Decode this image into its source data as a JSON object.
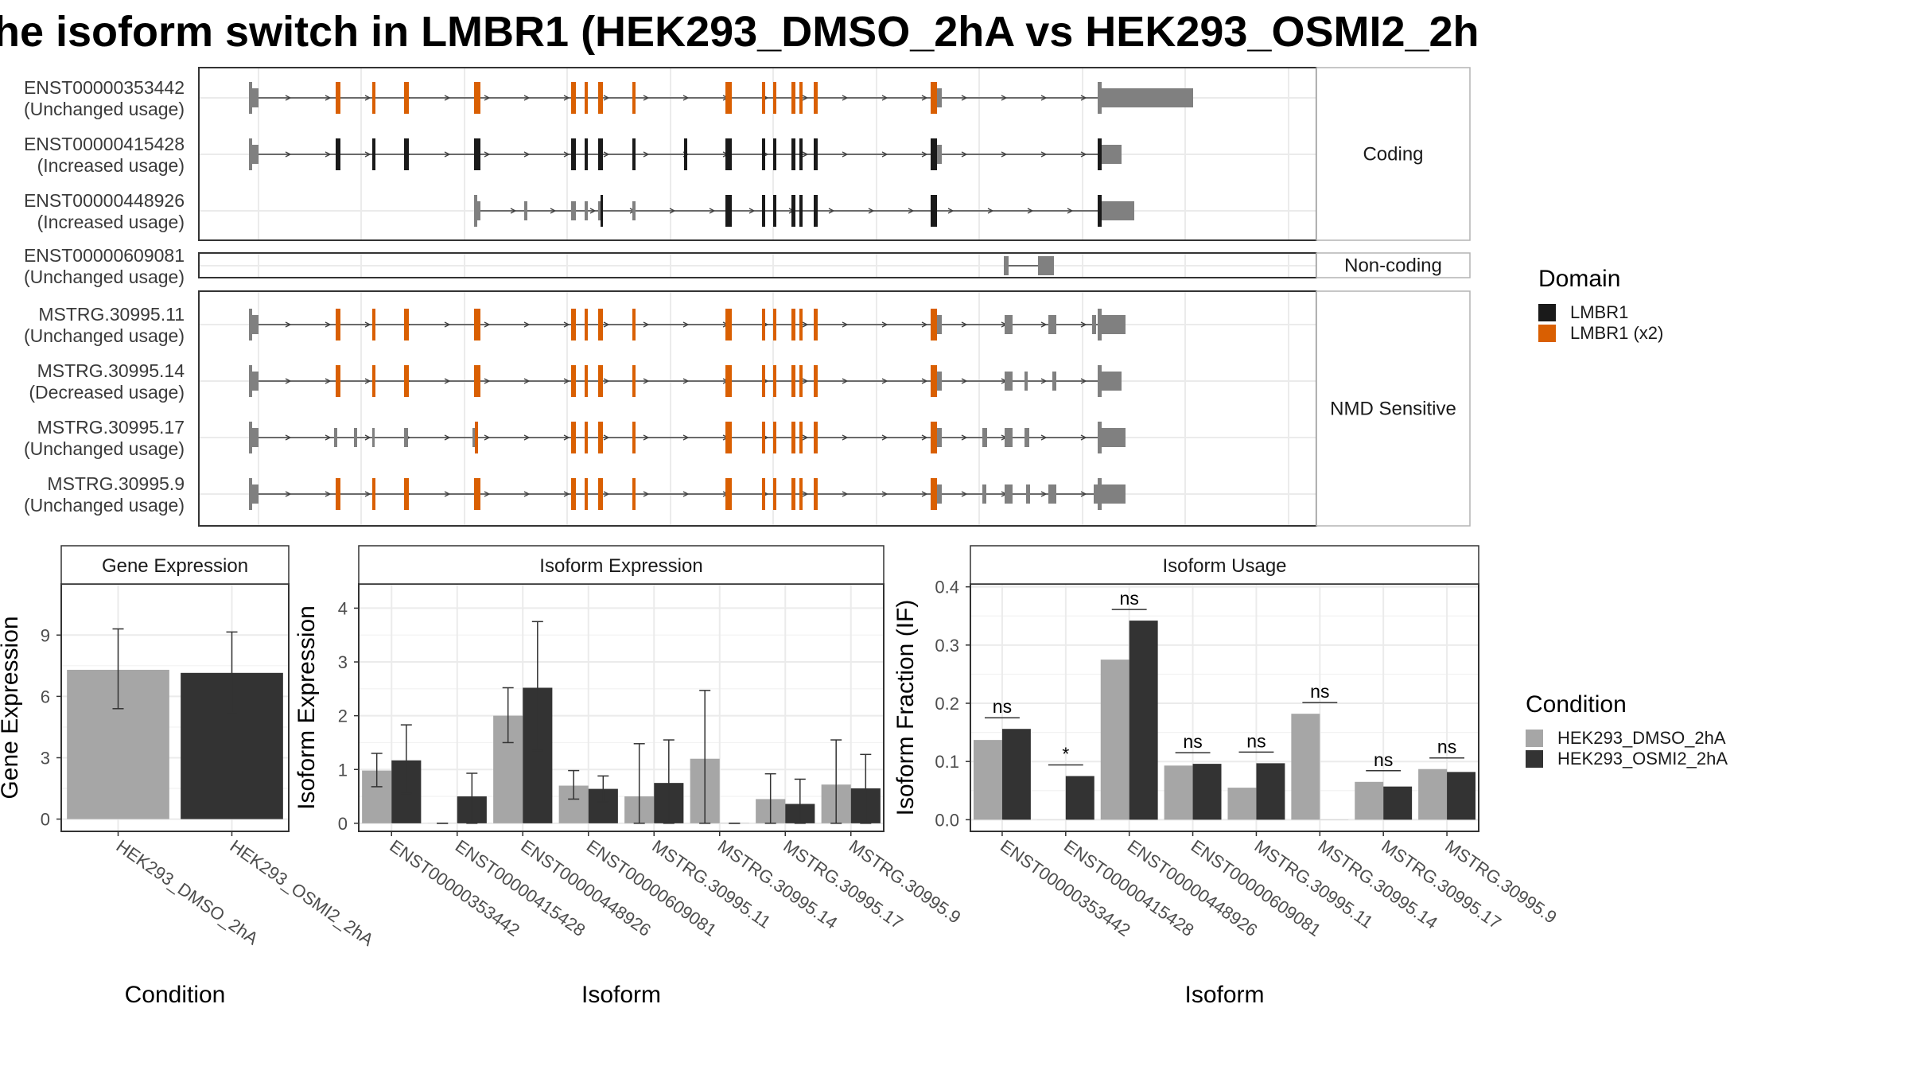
{
  "title": "he isoform switch in LMBR1 (HEK293_DMSO_2hA vs HEK293_OSMI2_2h",
  "colors": {
    "domain_black": "#1a1a1a",
    "domain_orange": "#d95f02",
    "utr_grey": "#808080",
    "dmso": "#a6a6a6",
    "osmi": "#333333",
    "grid": "#ebebeb",
    "panel_border": "#333333"
  },
  "transcripts": [
    {
      "id": "ENST00000353442",
      "usage": "(Unchanged usage)",
      "group": "coding",
      "domain": "orange",
      "start": 63,
      "end": 1133,
      "end_rect": [
        1133,
        1250
      ],
      "exons": [
        [
          63,
          75
        ],
        [
          172,
          178
        ],
        [
          218,
          222
        ],
        [
          258,
          264
        ],
        [
          346,
          354
        ],
        [
          468,
          474
        ],
        [
          485,
          489
        ],
        [
          502,
          508
        ],
        [
          545,
          549
        ],
        [
          662,
          670
        ],
        [
          708,
          712
        ],
        [
          722,
          726
        ],
        [
          745,
          750
        ],
        [
          755,
          759
        ],
        [
          773,
          778
        ],
        [
          920,
          928
        ],
        [
          928,
          934
        ]
      ],
      "coding_exons": [
        [
          172,
          178
        ],
        [
          218,
          222
        ],
        [
          258,
          264
        ],
        [
          346,
          354
        ],
        [
          468,
          474
        ],
        [
          485,
          489
        ],
        [
          502,
          508
        ],
        [
          545,
          549
        ],
        [
          662,
          670
        ],
        [
          708,
          712
        ],
        [
          722,
          726
        ],
        [
          745,
          750
        ],
        [
          755,
          759
        ],
        [
          773,
          778
        ],
        [
          920,
          928
        ]
      ]
    },
    {
      "id": "ENST00000415428",
      "usage": "(Increased usage)",
      "group": "coding",
      "domain": "black",
      "start": 63,
      "end": 1133,
      "end_rect": [
        1133,
        1160
      ],
      "exons": [
        [
          63,
          75
        ],
        [
          928,
          934
        ]
      ],
      "coding_exons": [
        [
          172,
          178
        ],
        [
          218,
          222
        ],
        [
          258,
          264
        ],
        [
          346,
          354
        ],
        [
          468,
          474
        ],
        [
          485,
          489
        ],
        [
          502,
          508
        ],
        [
          545,
          549
        ],
        [
          610,
          614
        ],
        [
          662,
          670
        ],
        [
          708,
          712
        ],
        [
          722,
          726
        ],
        [
          745,
          750
        ],
        [
          755,
          759
        ],
        [
          773,
          778
        ],
        [
          920,
          928
        ]
      ]
    },
    {
      "id": "ENST00000448926",
      "usage": "(Increased usage)",
      "group": "coding",
      "domain": "black",
      "start": 346,
      "end": 1133,
      "end_rect": [
        1133,
        1176
      ],
      "exons": [
        [
          346,
          354
        ],
        [
          409,
          413
        ],
        [
          468,
          474
        ],
        [
          485,
          489
        ],
        [
          502,
          505
        ],
        [
          545,
          549
        ]
      ],
      "coding_exons": [
        [
          505,
          508
        ],
        [
          662,
          670
        ],
        [
          708,
          712
        ],
        [
          722,
          726
        ],
        [
          745,
          750
        ],
        [
          755,
          759
        ],
        [
          773,
          778
        ],
        [
          920,
          928
        ]
      ]
    },
    {
      "id": "ENST00000609081",
      "usage": "(Unchanged usage)",
      "group": "noncoding",
      "domain": "none",
      "start": 1012,
      "end": 1075,
      "exons": [
        [
          1012,
          1018
        ],
        [
          1055,
          1075
        ]
      ],
      "coding_exons": []
    },
    {
      "id": "MSTRG.30995.11",
      "usage": "(Unchanged usage)",
      "group": "nmd",
      "domain": "orange",
      "start": 63,
      "end": 1133,
      "end_rect": [
        1133,
        1165
      ],
      "exons": [
        [
          63,
          75
        ],
        [
          928,
          934
        ],
        [
          1013,
          1023
        ],
        [
          1068,
          1078
        ],
        [
          1123,
          1128
        ]
      ],
      "coding_exons": [
        [
          172,
          178
        ],
        [
          218,
          222
        ],
        [
          258,
          264
        ],
        [
          346,
          354
        ],
        [
          468,
          474
        ],
        [
          485,
          489
        ],
        [
          502,
          508
        ],
        [
          545,
          549
        ],
        [
          662,
          670
        ],
        [
          708,
          712
        ],
        [
          722,
          726
        ],
        [
          745,
          750
        ],
        [
          755,
          759
        ],
        [
          773,
          778
        ],
        [
          920,
          928
        ]
      ]
    },
    {
      "id": "MSTRG.30995.14",
      "usage": "(Decreased usage)",
      "group": "nmd",
      "domain": "orange",
      "start": 63,
      "end": 1133,
      "end_rect": [
        1133,
        1160
      ],
      "exons": [
        [
          63,
          75
        ],
        [
          928,
          934
        ],
        [
          1013,
          1023
        ],
        [
          1038,
          1042
        ],
        [
          1073,
          1078
        ]
      ],
      "coding_exons": [
        [
          172,
          178
        ],
        [
          218,
          222
        ],
        [
          258,
          264
        ],
        [
          346,
          354
        ],
        [
          468,
          474
        ],
        [
          485,
          489
        ],
        [
          502,
          508
        ],
        [
          545,
          549
        ],
        [
          662,
          670
        ],
        [
          708,
          712
        ],
        [
          722,
          726
        ],
        [
          745,
          750
        ],
        [
          755,
          759
        ],
        [
          773,
          778
        ],
        [
          920,
          928
        ]
      ]
    },
    {
      "id": "MSTRG.30995.17",
      "usage": "(Unchanged usage)",
      "group": "nmd",
      "domain": "orange",
      "start": 63,
      "end": 1133,
      "end_rect": [
        1133,
        1165
      ],
      "exons": [
        [
          63,
          75
        ],
        [
          170,
          174
        ],
        [
          195,
          199
        ],
        [
          218,
          220
        ],
        [
          258,
          263
        ],
        [
          344,
          347
        ],
        [
          928,
          934
        ],
        [
          985,
          991
        ],
        [
          1013,
          1023
        ],
        [
          1038,
          1044
        ]
      ],
      "coding_exons": [
        [
          347,
          351
        ],
        [
          468,
          474
        ],
        [
          485,
          489
        ],
        [
          502,
          508
        ],
        [
          545,
          549
        ],
        [
          662,
          670
        ],
        [
          708,
          712
        ],
        [
          722,
          726
        ],
        [
          745,
          750
        ],
        [
          755,
          759
        ],
        [
          773,
          778
        ],
        [
          920,
          928
        ]
      ]
    },
    {
      "id": "MSTRG.30995.9",
      "usage": "(Unchanged usage)",
      "group": "nmd",
      "domain": "orange",
      "start": 63,
      "end": 1133,
      "end_rect": [
        1133,
        1165
      ],
      "exons": [
        [
          63,
          75
        ],
        [
          928,
          934
        ],
        [
          985,
          990
        ],
        [
          1013,
          1023
        ],
        [
          1040,
          1045
        ],
        [
          1068,
          1078
        ],
        [
          1125,
          1132
        ]
      ],
      "coding_exons": [
        [
          172,
          178
        ],
        [
          218,
          222
        ],
        [
          258,
          264
        ],
        [
          346,
          354
        ],
        [
          468,
          474
        ],
        [
          485,
          489
        ],
        [
          502,
          508
        ],
        [
          545,
          549
        ],
        [
          662,
          670
        ],
        [
          708,
          712
        ],
        [
          722,
          726
        ],
        [
          745,
          750
        ],
        [
          755,
          759
        ],
        [
          773,
          778
        ],
        [
          920,
          928
        ]
      ]
    }
  ],
  "strips": {
    "coding": "Coding",
    "noncoding": "Non-coding",
    "nmd": "NMD Sensitive"
  },
  "legend_domain": {
    "title": "Domain",
    "items": [
      {
        "label": "LMBR1",
        "color": "#1a1a1a"
      },
      {
        "label": "LMBR1 (x2)",
        "color": "#d95f02"
      }
    ]
  },
  "legend_condition": {
    "title": "Condition",
    "items": [
      {
        "label": "HEK293_DMSO_2hA",
        "color": "#a6a6a6"
      },
      {
        "label": "HEK293_OSMI2_2hA",
        "color": "#333333"
      }
    ]
  },
  "chart_data": [
    {
      "type": "bar",
      "panel": "Gene Expression",
      "xlabel": "Condition",
      "ylabel": "Gene Expression",
      "categories": [
        "HEK293_DMSO_2hA",
        "HEK293_OSMI2_2hA"
      ],
      "values": [
        7.3,
        7.15
      ],
      "error_low": [
        5.4,
        5.2
      ],
      "error_high": [
        9.3,
        9.15
      ],
      "ylim": [
        -0.6,
        11.5
      ],
      "yticks": [
        0,
        3,
        6,
        9
      ]
    },
    {
      "type": "bar",
      "panel": "Isoform Expression",
      "xlabel": "Isoform",
      "ylabel": "Isoform Expression",
      "categories": [
        "ENST00000353442",
        "ENST00000415428",
        "ENST00000448926",
        "ENST00000609081",
        "MSTRG.30995.11",
        "MSTRG.30995.14",
        "MSTRG.30995.17",
        "MSTRG.30995.9"
      ],
      "series": [
        {
          "name": "HEK293_DMSO_2hA",
          "values": [
            0.98,
            0.0,
            2.0,
            0.7,
            0.5,
            1.2,
            0.45,
            0.72
          ],
          "error_low": [
            0.68,
            0.0,
            1.5,
            0.45,
            0.0,
            0.0,
            0.0,
            0.0
          ],
          "error_high": [
            1.3,
            0.0,
            2.52,
            0.98,
            1.48,
            2.47,
            0.92,
            1.55
          ]
        },
        {
          "name": "HEK293_OSMI2_2hA",
          "values": [
            1.17,
            0.5,
            2.52,
            0.64,
            0.75,
            0.0,
            0.36,
            0.65
          ],
          "error_low": [
            0.55,
            0.0,
            1.35,
            0.4,
            0.0,
            0.0,
            0.0,
            0.0
          ],
          "error_high": [
            1.83,
            0.93,
            3.75,
            0.88,
            1.55,
            0.0,
            0.82,
            1.28
          ]
        }
      ],
      "ylim": [
        -0.15,
        4.45
      ],
      "yticks": [
        0,
        1,
        2,
        3,
        4
      ]
    },
    {
      "type": "bar",
      "panel": "Isoform Usage",
      "xlabel": "Isoform",
      "ylabel": "Isoform Fraction (IF)",
      "categories": [
        "ENST00000353442",
        "ENST00000415428",
        "ENST00000448926",
        "ENST00000609081",
        "MSTRG.30995.11",
        "MSTRG.30995.14",
        "MSTRG.30995.17",
        "MSTRG.30995.9"
      ],
      "series": [
        {
          "name": "HEK293_DMSO_2hA",
          "values": [
            0.137,
            0.0,
            0.275,
            0.093,
            0.055,
            0.182,
            0.065,
            0.087
          ]
        },
        {
          "name": "HEK293_OSMI2_2hA",
          "values": [
            0.156,
            0.075,
            0.342,
            0.096,
            0.097,
            0.0,
            0.057,
            0.082
          ]
        }
      ],
      "significance": [
        "ns",
        "*",
        "ns",
        "ns",
        "ns",
        "ns",
        "ns",
        "ns"
      ],
      "ylim": [
        -0.02,
        0.405
      ],
      "yticks": [
        0.0,
        0.1,
        0.2,
        0.3,
        0.4
      ],
      "ytick_labels": [
        "0.0",
        "0.1",
        "0.2",
        "0.3",
        "0.4"
      ]
    }
  ]
}
